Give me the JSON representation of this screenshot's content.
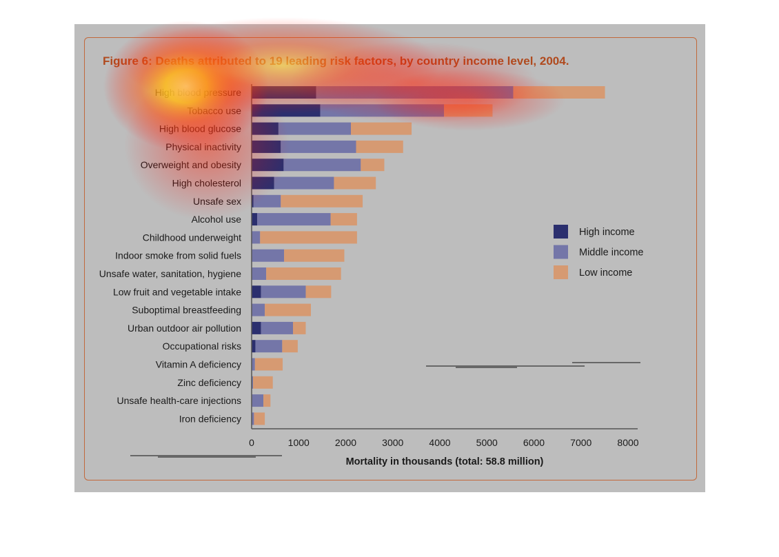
{
  "chart_data": {
    "type": "bar",
    "orientation": "horizontal",
    "stacked": true,
    "title": "Figure 6: Deaths attributed to 19 leading risk factors, by country income level, 2004.",
    "xlabel": "Mortality in thousands (total: 58.8 million)",
    "xlim": [
      0,
      8000
    ],
    "xticks": [
      "0",
      "1000",
      "2000",
      "3000",
      "4000",
      "5000",
      "6000",
      "7000",
      "8000"
    ],
    "legend_position": "right",
    "categories": [
      "High blood pressure",
      "Tobacco use",
      "High blood glucose",
      "Physical inactivity",
      "Overweight and obesity",
      "High cholesterol",
      "Unsafe sex",
      "Alcohol use",
      "Childhood underweight",
      "Indoor smoke from solid fuels",
      "Unsafe water, sanitation, hygiene",
      "Low fruit and vegetable intake",
      "Suboptimal breastfeeding",
      "Urban outdoor air pollution",
      "Occupational risks",
      "Vitamin A deficiency",
      "Zinc deficiency",
      "Unsafe health-care injections",
      "Iron deficiency"
    ],
    "series": [
      {
        "name": "High income",
        "color": "#2b2f6e",
        "values": [
          1370,
          1460,
          570,
          620,
          680,
          480,
          40,
          120,
          0,
          0,
          0,
          200,
          0,
          200,
          80,
          0,
          0,
          0,
          0
        ]
      },
      {
        "name": "Middle income",
        "color": "#7476a8",
        "values": [
          4190,
          2630,
          1540,
          1600,
          1640,
          1270,
          580,
          1560,
          180,
          690,
          310,
          950,
          280,
          680,
          570,
          70,
          30,
          250,
          50
        ]
      },
      {
        "name": "Low income",
        "color": "#d69a72",
        "values": [
          1950,
          1030,
          1290,
          1000,
          500,
          890,
          1740,
          560,
          2060,
          1280,
          1590,
          540,
          980,
          270,
          330,
          590,
          420,
          150,
          230
        ]
      }
    ]
  }
}
